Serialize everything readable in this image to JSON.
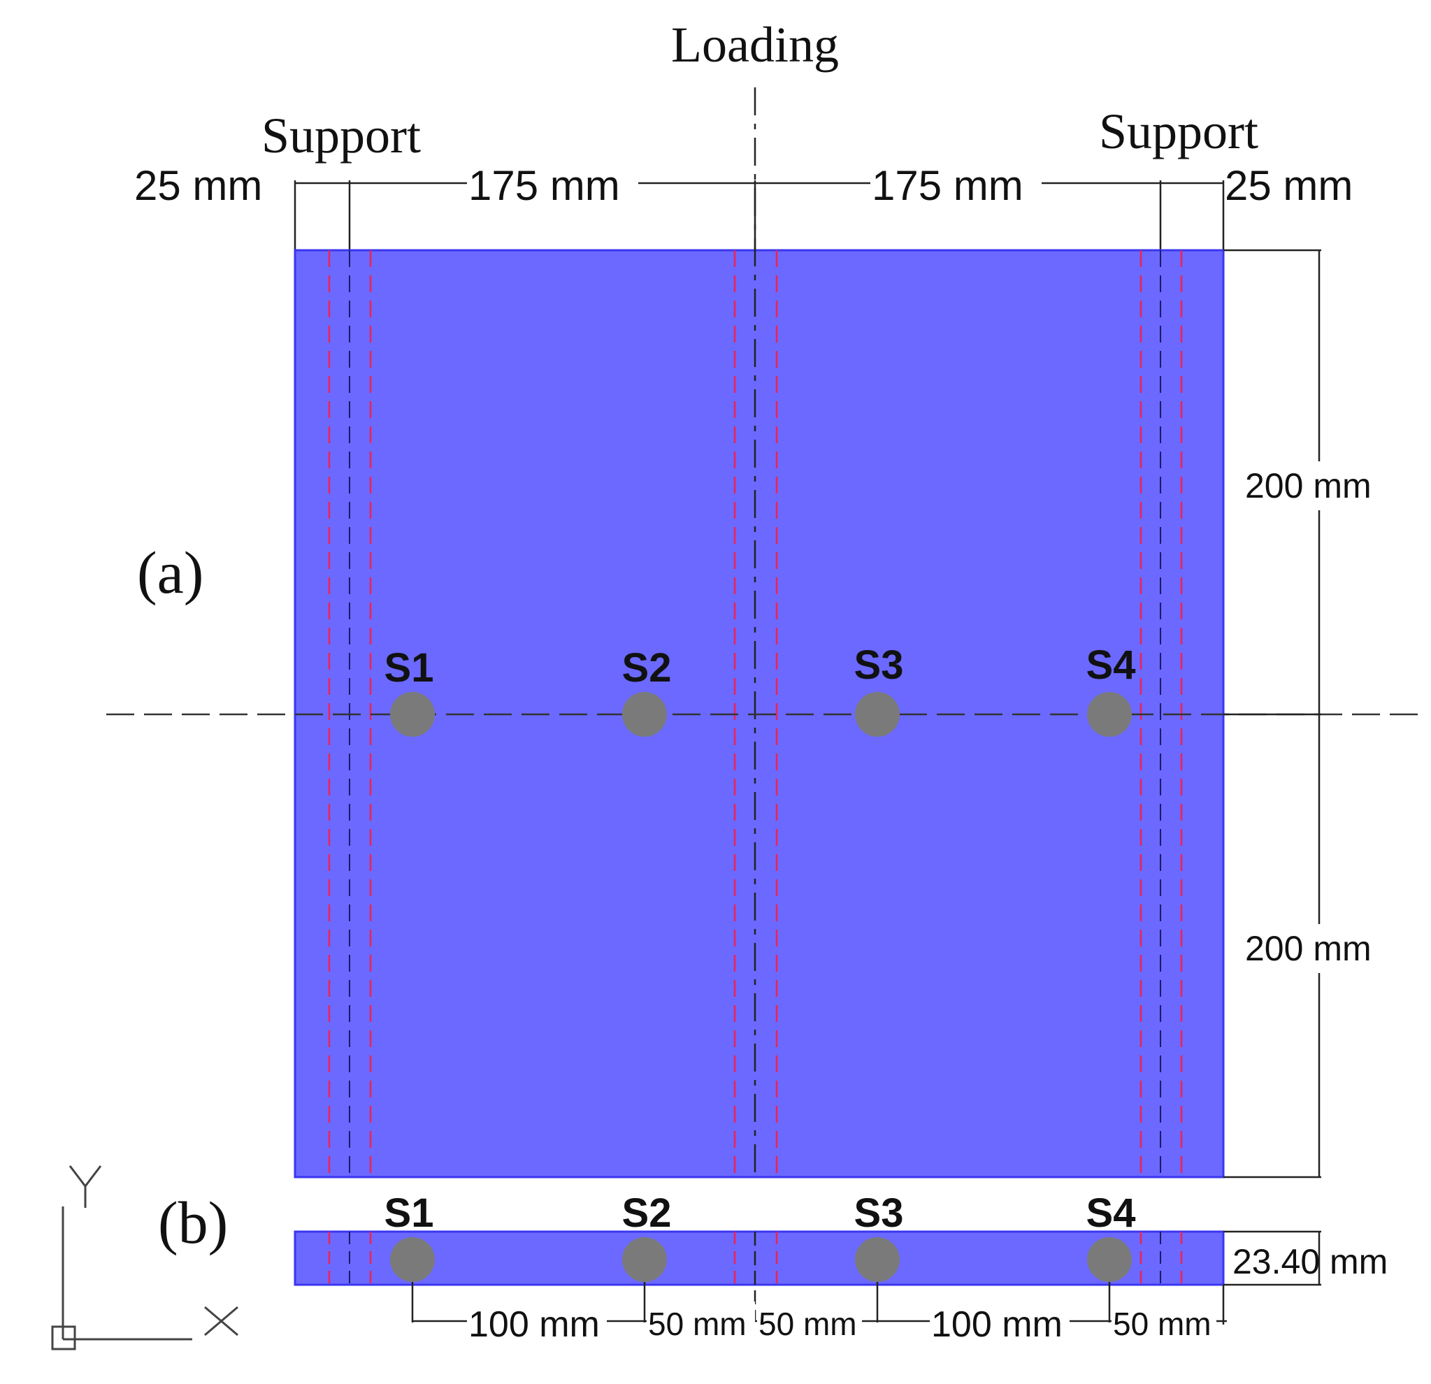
{
  "labels": {
    "loading": "Loading",
    "support_left": "Support",
    "support_right": "Support",
    "panel_a": "(a)",
    "panel_b": "(b)",
    "axis_y": "Y",
    "axis_x": "X"
  },
  "top_dimensions": {
    "left_edge": "25 mm",
    "left_span": "175 mm",
    "right_span": "175 mm",
    "right_edge": "25 mm"
  },
  "side_dimensions": {
    "upper": "200 mm",
    "lower": "200 mm",
    "thickness": "23.40 mm"
  },
  "bottom_dimensions": {
    "d1": "100 mm",
    "d2": "50 mm",
    "d3": "50 mm",
    "d4": "100 mm",
    "d5": "50 mm"
  },
  "sensors_plan": [
    "S1",
    "S2",
    "S3",
    "S4"
  ],
  "sensors_section": [
    "S1",
    "S2",
    "S3",
    "S4"
  ],
  "colors": {
    "specimen_fill": "#6b69ff",
    "specimen_edge": "#3a36f0",
    "red_dashed": "#ee2255",
    "sensor": "#7a7a7a",
    "line": "#222222"
  }
}
